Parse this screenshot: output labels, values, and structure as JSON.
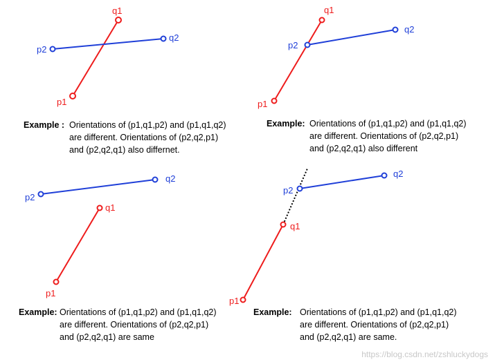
{
  "colors": {
    "segment_1": "#ee1c1c",
    "segment_2": "#1f3fd8",
    "extension": "#000000"
  },
  "panels": [
    {
      "id": "top-left",
      "points": {
        "p1": "p1",
        "q1": "q1",
        "p2": "p2",
        "q2": "q2"
      },
      "caption": {
        "label": "Example :",
        "lines": [
          "Orientations of (p1,q1,p2) and (p1,q1,q2)",
          "are different. Orientations of (p2,q2,p1)",
          "and (p2,q2,q1) also differnet."
        ]
      }
    },
    {
      "id": "top-right",
      "points": {
        "p1": "p1",
        "q1": "q1",
        "p2": "p2",
        "q2": "q2"
      },
      "caption": {
        "label": "Example:",
        "lines": [
          "Orientations of (p1,q1,p2) and (p1,q1,q2)",
          "are different. Orientations of (p2,q2,p1)",
          "and (p2,q2,q1) also different"
        ]
      }
    },
    {
      "id": "bottom-left",
      "points": {
        "p1": "p1",
        "q1": "q1",
        "p2": "p2",
        "q2": "q2"
      },
      "caption": {
        "label": "Example:",
        "lines": [
          "Orientations of (p1,q1,p2) and (p1,q1,q2)",
          "are different. Orientations of (p2,q2,p1)",
          "and (p2,q2,q1) are same"
        ]
      }
    },
    {
      "id": "bottom-right",
      "points": {
        "p1": "p1",
        "q1": "q1",
        "p2": "p2",
        "q2": "q2"
      },
      "caption": {
        "label": "Example:",
        "lines": [
          "Orientations of (p1,q1,p2) and (p1,q1,q2)",
          "are different. Orientations of (p2,q2,p1)",
          "and (p2,q2,q1) are same."
        ]
      }
    }
  ],
  "watermark": "https://blog.csdn.net/zshluckydogs"
}
